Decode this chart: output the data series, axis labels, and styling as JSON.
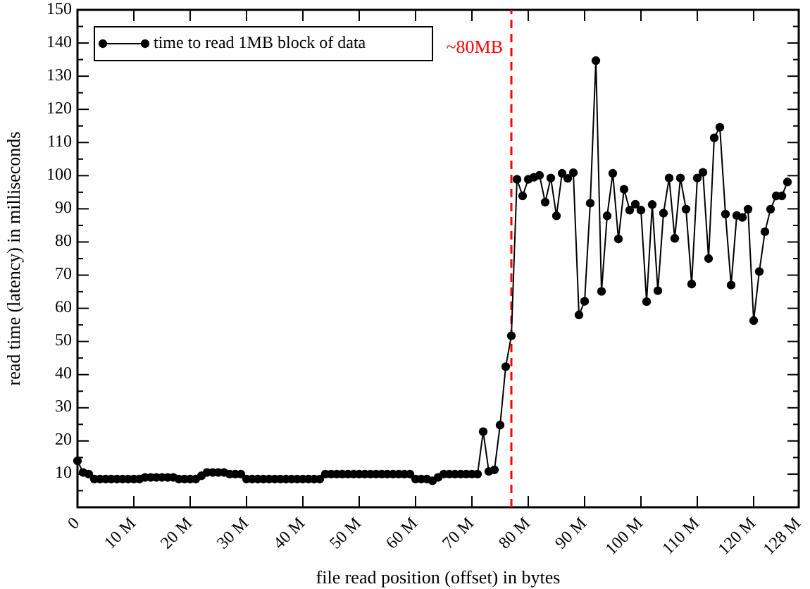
{
  "chart_data": {
    "type": "line",
    "xlabel": "file read position (offset) in bytes",
    "ylabel": "read time (latency) in milliseconds",
    "xlim": [
      0,
      128
    ],
    "ylim": [
      0,
      150
    ],
    "xticks": [
      0,
      {
        "value": 10,
        "label": "10 M"
      },
      {
        "value": 20,
        "label": "20 M"
      },
      {
        "value": 30,
        "label": "30 M"
      },
      {
        "value": 40,
        "label": "40 M"
      },
      {
        "value": 50,
        "label": "50 M"
      },
      {
        "value": 60,
        "label": "60 M"
      },
      {
        "value": 70,
        "label": "70 M"
      },
      {
        "value": 80,
        "label": "80 M"
      },
      {
        "value": 90,
        "label": "90 M"
      },
      {
        "value": 100,
        "label": "100 M"
      },
      {
        "value": 110,
        "label": "110 M"
      },
      {
        "value": 120,
        "label": "120 M"
      },
      {
        "value": 128,
        "label": "128 M"
      }
    ],
    "yticks": [
      {
        "value": 5,
        "label": null
      },
      10,
      {
        "value": 15,
        "label": null
      },
      20,
      {
        "value": 25,
        "label": null
      },
      30,
      {
        "value": 35,
        "label": null
      },
      40,
      {
        "value": 45,
        "label": null
      },
      50,
      {
        "value": 55,
        "label": null
      },
      60,
      {
        "value": 65,
        "label": null
      },
      70,
      {
        "value": 75,
        "label": null
      },
      80,
      {
        "value": 85,
        "label": null
      },
      90,
      {
        "value": 95,
        "label": null
      },
      100,
      {
        "value": 105,
        "label": null
      },
      110,
      {
        "value": 115,
        "label": null
      },
      120,
      {
        "value": 125,
        "label": null
      },
      130,
      {
        "value": 135,
        "label": null
      },
      140,
      {
        "value": 145,
        "label": null
      },
      150
    ],
    "grid": false,
    "legend": "top left",
    "marker": "circle",
    "line_style": "solid",
    "ref_lines": [
      {
        "axis": "x",
        "value": 77,
        "label": "~80MB",
        "color": "#ff0000",
        "line_style": "dashed"
      }
    ],
    "series": [
      {
        "name": "time to read 1MB block of data",
        "color": "#000000",
        "x": [
          0,
          1,
          2,
          3,
          4,
          5,
          6,
          7,
          8,
          9,
          10,
          11,
          12,
          13,
          14,
          15,
          16,
          17,
          18,
          19,
          20,
          21,
          22,
          23,
          24,
          25,
          26,
          27,
          28,
          29,
          30,
          31,
          32,
          33,
          34,
          35,
          36,
          37,
          38,
          39,
          40,
          41,
          42,
          43,
          44,
          45,
          46,
          47,
          48,
          49,
          50,
          51,
          52,
          53,
          54,
          55,
          56,
          57,
          58,
          59,
          60,
          61,
          62,
          63,
          64,
          65,
          66,
          67,
          68,
          69,
          70,
          71,
          72,
          73,
          74,
          75,
          76,
          77,
          78,
          79,
          80,
          81,
          82,
          83,
          84,
          85,
          86,
          87,
          88,
          89,
          90,
          91,
          92,
          93,
          94,
          95,
          96,
          97,
          98,
          99,
          100,
          101,
          102,
          103,
          104,
          105,
          106,
          107,
          108,
          109,
          110,
          111,
          112,
          113,
          114,
          115,
          116,
          117,
          118,
          119,
          120,
          121,
          122,
          123,
          124,
          125,
          126
        ],
        "values": [
          14,
          10.5,
          10,
          8.5,
          8.5,
          8.5,
          8.5,
          8.5,
          8.5,
          8.5,
          8.5,
          8.5,
          9,
          9,
          9,
          9,
          9,
          9,
          8.5,
          8.5,
          8.5,
          8.5,
          9.5,
          10.5,
          10.5,
          10.5,
          10.5,
          10,
          10,
          10,
          8.5,
          8.5,
          8.5,
          8.5,
          8.5,
          8.5,
          8.5,
          8.5,
          8.5,
          8.5,
          8.5,
          8.5,
          8.5,
          8.5,
          10,
          10,
          10,
          10,
          10,
          10,
          10,
          10,
          10,
          10,
          10,
          10,
          10,
          10,
          10,
          10,
          8.5,
          8.5,
          8.5,
          8,
          9,
          10,
          10,
          10,
          10,
          10,
          10,
          10,
          22.8,
          10.8,
          11.3,
          24.8,
          42.4,
          51.7,
          98.9,
          93.9,
          98.9,
          99.5,
          100.1,
          92,
          99.3,
          87.9,
          100.7,
          99.2,
          100.9,
          58,
          62.1,
          91.7,
          134.7,
          65.1,
          87.9,
          100.7,
          80.9,
          95.9,
          89.6,
          91.4,
          89.6,
          62,
          91.3,
          65.3,
          88.7,
          99.3,
          81.1,
          99.3,
          89.9,
          67.3,
          99.3,
          101,
          75,
          111.4,
          114.6,
          88.4,
          67,
          88,
          87.4,
          89.9,
          56.3,
          71.1,
          83.1,
          89.9,
          93.9,
          93.9,
          98.1
        ]
      }
    ]
  }
}
